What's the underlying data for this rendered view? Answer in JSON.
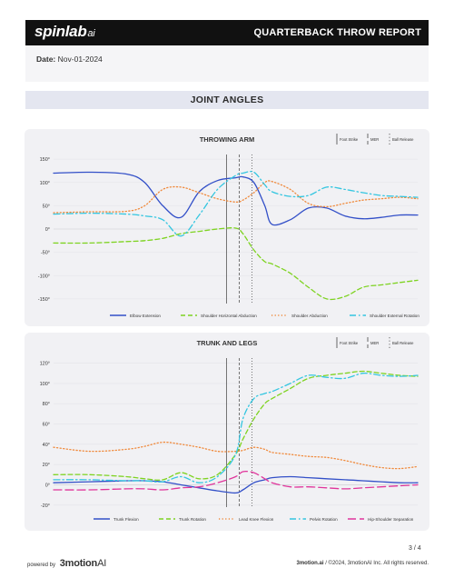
{
  "header": {
    "logo_main": "spinlab",
    "logo_suffix": "ai",
    "title": "QUARTERBACK THROW REPORT"
  },
  "meta": {
    "date_label": "Date:",
    "date_value": "Nov-01-2024"
  },
  "section": {
    "title": "JOINT ANGLES"
  },
  "markers": {
    "foot_strike": "Foot Strike",
    "mer": "MER",
    "ball_release": "Ball Release"
  },
  "throwing_arm": {
    "title": "THROWING ARM",
    "y_tick_labels": [
      "150°",
      "100°",
      "50°",
      "0°",
      "-50°",
      "-100°",
      "-150°"
    ],
    "legend": [
      "Elbow Extension",
      "Shoulder Horizontal Abduction",
      "Shoulder Abduction",
      "Shoulder External Rotation"
    ]
  },
  "trunk_legs": {
    "title": "TRUNK AND LEGS",
    "y_tick_labels": [
      "120°",
      "100°",
      "80°",
      "60°",
      "40°",
      "20°",
      "0°",
      "-20°"
    ],
    "legend": [
      "Trunk Flexion",
      "Trunk Rotation",
      "Lead Knee Flexion",
      "Pelvis Rotation",
      "Hip-Shoulder Separation"
    ]
  },
  "chart_data": [
    {
      "type": "line",
      "title": "THROWING ARM",
      "ylim": [
        -160,
        160
      ],
      "y_ticks": [
        150,
        100,
        50,
        0,
        -50,
        -100,
        -150
      ],
      "x": [
        0,
        0.1,
        0.2,
        0.25,
        0.3,
        0.35,
        0.4,
        0.45,
        0.5,
        0.52,
        0.55,
        0.58,
        0.6,
        0.65,
        0.7,
        0.75,
        0.8,
        0.85,
        0.9,
        0.95,
        1.0
      ],
      "x_note": "relative time, no axis printed",
      "markers": {
        "foot_strike": 0.475,
        "mer": 0.51,
        "ball_release": 0.545
      },
      "grid": true,
      "legend_position": "bottom",
      "series": [
        {
          "name": "Elbow Extension",
          "color": "#3350c8",
          "style": "solid",
          "values": [
            120,
            122,
            118,
            100,
            50,
            25,
            80,
            104,
            110,
            112,
            100,
            50,
            10,
            20,
            45,
            45,
            28,
            22,
            25,
            30,
            30
          ]
        },
        {
          "name": "Shoulder Horizontal Abduction",
          "color": "#7ed321",
          "style": "dashed",
          "values": [
            -30,
            -30,
            -27,
            -25,
            -20,
            -10,
            -5,
            0,
            2,
            -10,
            -45,
            -70,
            -75,
            -95,
            -125,
            -150,
            -145,
            -125,
            -120,
            -115,
            -110
          ]
        },
        {
          "name": "Shoulder Abduction",
          "color": "#f08a3c",
          "style": "dotted",
          "values": [
            35,
            37,
            38,
            50,
            85,
            90,
            78,
            65,
            58,
            62,
            78,
            100,
            102,
            85,
            55,
            48,
            55,
            62,
            65,
            68,
            65
          ]
        },
        {
          "name": "Shoulder External Rotation",
          "color": "#34c6e0",
          "style": "dashdot",
          "values": [
            32,
            34,
            32,
            28,
            20,
            -15,
            30,
            85,
            115,
            120,
            122,
            95,
            80,
            70,
            72,
            90,
            85,
            78,
            72,
            70,
            68
          ]
        }
      ]
    },
    {
      "type": "line",
      "title": "TRUNK AND LEGS",
      "ylim": [
        -22,
        125
      ],
      "y_ticks": [
        120,
        100,
        80,
        60,
        40,
        20,
        0,
        -20
      ],
      "x": [
        0,
        0.1,
        0.2,
        0.25,
        0.3,
        0.35,
        0.4,
        0.45,
        0.5,
        0.52,
        0.55,
        0.58,
        0.6,
        0.65,
        0.7,
        0.75,
        0.8,
        0.85,
        0.9,
        0.95,
        1.0
      ],
      "x_note": "relative time, no axis printed",
      "markers": {
        "foot_strike": 0.475,
        "mer": 0.51,
        "ball_release": 0.545
      },
      "grid": true,
      "legend_position": "bottom",
      "series": [
        {
          "name": "Trunk Flexion",
          "color": "#3350c8",
          "style": "solid",
          "values": [
            2,
            3,
            4,
            4,
            3,
            0,
            -3,
            -6,
            -8,
            -5,
            2,
            5,
            7,
            8,
            7,
            6,
            5,
            4,
            3,
            2,
            2
          ]
        },
        {
          "name": "Trunk Rotation",
          "color": "#7ed321",
          "style": "dashed",
          "values": [
            10,
            10,
            8,
            6,
            5,
            12,
            6,
            10,
            30,
            45,
            65,
            80,
            85,
            95,
            105,
            108,
            110,
            112,
            110,
            108,
            107
          ]
        },
        {
          "name": "Lead Knee Flexion",
          "color": "#f08a3c",
          "style": "dotted",
          "values": [
            37,
            33,
            35,
            38,
            42,
            40,
            37,
            33,
            33,
            34,
            37,
            35,
            32,
            30,
            28,
            27,
            24,
            20,
            17,
            16,
            18
          ]
        },
        {
          "name": "Pelvis Rotation",
          "color": "#34c6e0",
          "style": "dashdot",
          "values": [
            5,
            5,
            4,
            4,
            3,
            8,
            2,
            8,
            30,
            65,
            85,
            90,
            92,
            100,
            108,
            106,
            105,
            110,
            108,
            107,
            108
          ]
        },
        {
          "name": "Hip-Shoulder Separation",
          "color": "#e0359b",
          "style": "longdash",
          "values": [
            -5,
            -5,
            -4,
            -4,
            -5,
            -3,
            -2,
            2,
            8,
            13,
            12,
            6,
            2,
            -2,
            -2,
            -3,
            -4,
            -3,
            -2,
            -1,
            0
          ]
        }
      ]
    }
  ],
  "footer": {
    "powered_by": "powered by",
    "brand_main": "3motion",
    "brand_suffix": "AI",
    "page": "3 / 4",
    "site": "3motion.ai",
    "copyright": "/  ©2024, 3motionAI Inc. All rights reserved."
  }
}
